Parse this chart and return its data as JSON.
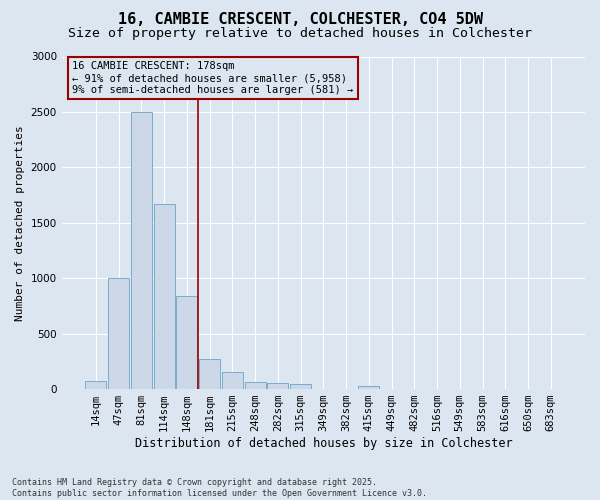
{
  "title_line1": "16, CAMBIE CRESCENT, COLCHESTER, CO4 5DW",
  "title_line2": "Size of property relative to detached houses in Colchester",
  "xlabel": "Distribution of detached houses by size in Colchester",
  "ylabel": "Number of detached properties",
  "categories": [
    "14sqm",
    "47sqm",
    "81sqm",
    "114sqm",
    "148sqm",
    "181sqm",
    "215sqm",
    "248sqm",
    "282sqm",
    "315sqm",
    "349sqm",
    "382sqm",
    "415sqm",
    "449sqm",
    "482sqm",
    "516sqm",
    "549sqm",
    "583sqm",
    "616sqm",
    "650sqm",
    "683sqm"
  ],
  "values": [
    75,
    1000,
    2500,
    1670,
    840,
    270,
    155,
    65,
    55,
    50,
    0,
    0,
    25,
    0,
    0,
    0,
    0,
    0,
    0,
    0,
    0
  ],
  "bar_color": "#ccd8e8",
  "bar_edgecolor": "#7aaccc",
  "vline_x": 4.5,
  "vline_color": "#990000",
  "annotation_line1": "16 CAMBIE CRESCENT: 178sqm",
  "annotation_line2": "← 91% of detached houses are smaller (5,958)",
  "annotation_line3": "9% of semi-detached houses are larger (581) →",
  "annotation_box_color": "#990000",
  "ylim": [
    0,
    3000
  ],
  "yticks": [
    0,
    500,
    1000,
    1500,
    2000,
    2500,
    3000
  ],
  "background_color": "#dce6f0",
  "grid_color": "#ffffff",
  "footer_text": "Contains HM Land Registry data © Crown copyright and database right 2025.\nContains public sector information licensed under the Open Government Licence v3.0.",
  "title_fontsize": 11,
  "subtitle_fontsize": 9.5,
  "xlabel_fontsize": 8.5,
  "ylabel_fontsize": 8,
  "tick_fontsize": 7.5,
  "footer_fontsize": 6,
  "annot_fontsize": 7.5
}
